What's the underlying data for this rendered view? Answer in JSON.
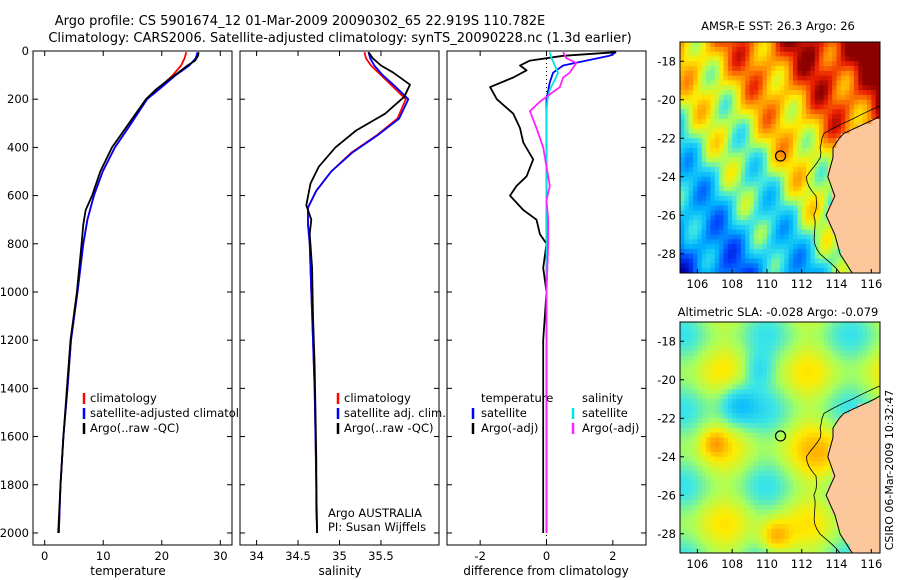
{
  "figure": {
    "title_line1": "Argo profile: CS 5901674_12 01-Mar-2009 20090302_65 22.919S 110.782E",
    "title_line2": "Climatology: CARS2006. Satellite-adjusted climatology: synTS_20090228.nc (1.3d earlier)",
    "side_label": "CSIRO 06-Mar-2009 10:32:47",
    "argo_note_line1": "Argo AUSTRALIA",
    "argo_note_line2": "PI: Susan Wijffels"
  },
  "colors": {
    "climatology": "#ff0000",
    "satellite": "#0000ff",
    "argo": "#000000",
    "salinity_satellite": "#00e5e5",
    "salinity_argo": "#ff22ff"
  },
  "chart_data": [
    {
      "type": "line",
      "xlabel": "temperature",
      "xlim": [
        -2,
        32
      ],
      "ylim": [
        0,
        2050
      ],
      "y_reversed": true,
      "xticks": [
        0,
        10,
        20,
        30
      ],
      "yticks": [
        0,
        200,
        400,
        600,
        800,
        1000,
        1200,
        1400,
        1600,
        1800,
        2000
      ],
      "legend": [
        "climatology",
        "satellite-adjusted climatolog",
        "Argo(..raw -QC)"
      ],
      "series": [
        {
          "name": "climatology",
          "color": "#ff0000",
          "points": [
            [
              24.2,
              5
            ],
            [
              23.9,
              30
            ],
            [
              23.3,
              60
            ],
            [
              21.9,
              100
            ],
            [
              19.7,
              150
            ],
            [
              17.4,
              200
            ],
            [
              14.8,
              300
            ],
            [
              12.0,
              400
            ],
            [
              9.9,
              500
            ],
            [
              8.4,
              600
            ],
            [
              7.3,
              700
            ],
            [
              6.6,
              800
            ],
            [
              5.6,
              1000
            ],
            [
              4.5,
              1200
            ],
            [
              3.9,
              1400
            ],
            [
              3.2,
              1600
            ],
            [
              2.7,
              1800
            ],
            [
              2.4,
              2000
            ]
          ]
        },
        {
          "name": "satellite-adjusted climatolog",
          "color": "#0000ff",
          "points": [
            [
              26.1,
              5
            ],
            [
              25.8,
              30
            ],
            [
              24.7,
              60
            ],
            [
              22.4,
              100
            ],
            [
              20.0,
              150
            ],
            [
              17.5,
              200
            ],
            [
              14.8,
              300
            ],
            [
              12.0,
              400
            ],
            [
              9.9,
              500
            ],
            [
              8.4,
              600
            ],
            [
              7.3,
              700
            ],
            [
              6.6,
              800
            ],
            [
              5.6,
              1000
            ],
            [
              4.5,
              1200
            ],
            [
              3.9,
              1400
            ],
            [
              3.2,
              1600
            ],
            [
              2.7,
              1800
            ],
            [
              2.4,
              2000
            ]
          ]
        },
        {
          "name": "Argo(..raw -QC)",
          "color": "#000000",
          "points": [
            [
              26.3,
              5
            ],
            [
              26.2,
              20
            ],
            [
              25.7,
              40
            ],
            [
              24.4,
              60
            ],
            [
              22.8,
              90
            ],
            [
              21.1,
              120
            ],
            [
              19.0,
              160
            ],
            [
              17.3,
              200
            ],
            [
              14.4,
              300
            ],
            [
              11.5,
              400
            ],
            [
              9.5,
              500
            ],
            [
              8.1,
              600
            ],
            [
              7.0,
              660
            ],
            [
              6.6,
              720
            ],
            [
              6.3,
              800
            ],
            [
              5.5,
              1000
            ],
            [
              4.4,
              1200
            ],
            [
              3.8,
              1400
            ],
            [
              3.2,
              1600
            ],
            [
              2.7,
              1800
            ],
            [
              2.3,
              2000
            ]
          ]
        }
      ]
    },
    {
      "type": "line",
      "xlabel": "salinity",
      "xlim": [
        33.8,
        36.2
      ],
      "ylim": [
        0,
        2050
      ],
      "y_reversed": true,
      "xticks": [
        34,
        34.5,
        35,
        35.5
      ],
      "legend": [
        "climatology",
        "satellite adj. clim.",
        "Argo(..raw -QC)"
      ],
      "series": [
        {
          "name": "climatology",
          "color": "#ff0000",
          "points": [
            [
              35.3,
              5
            ],
            [
              35.32,
              30
            ],
            [
              35.38,
              60
            ],
            [
              35.5,
              100
            ],
            [
              35.65,
              150
            ],
            [
              35.8,
              200
            ],
            [
              35.7,
              280
            ],
            [
              35.45,
              350
            ],
            [
              35.15,
              420
            ],
            [
              34.9,
              500
            ],
            [
              34.72,
              580
            ],
            [
              34.62,
              650
            ],
            [
              34.62,
              720
            ],
            [
              34.64,
              800
            ],
            [
              34.66,
              1000
            ],
            [
              34.68,
              1200
            ],
            [
              34.7,
              1400
            ],
            [
              34.71,
              1600
            ],
            [
              34.72,
              1800
            ],
            [
              34.73,
              2000
            ]
          ]
        },
        {
          "name": "satellite adj. clim.",
          "color": "#0000ff",
          "points": [
            [
              35.35,
              5
            ],
            [
              35.37,
              30
            ],
            [
              35.42,
              60
            ],
            [
              35.52,
              100
            ],
            [
              35.68,
              150
            ],
            [
              35.83,
              200
            ],
            [
              35.72,
              280
            ],
            [
              35.46,
              350
            ],
            [
              35.16,
              420
            ],
            [
              34.9,
              500
            ],
            [
              34.72,
              580
            ],
            [
              34.62,
              650
            ],
            [
              34.62,
              720
            ],
            [
              34.64,
              800
            ],
            [
              34.66,
              1000
            ],
            [
              34.68,
              1200
            ],
            [
              34.7,
              1400
            ],
            [
              34.71,
              1600
            ],
            [
              34.72,
              1800
            ],
            [
              34.73,
              2000
            ]
          ]
        },
        {
          "name": "Argo(..raw -QC)",
          "color": "#000000",
          "points": [
            [
              35.35,
              5
            ],
            [
              35.4,
              30
            ],
            [
              35.5,
              60
            ],
            [
              35.65,
              90
            ],
            [
              35.85,
              140
            ],
            [
              35.78,
              190
            ],
            [
              35.55,
              260
            ],
            [
              35.2,
              330
            ],
            [
              34.95,
              400
            ],
            [
              34.75,
              480
            ],
            [
              34.65,
              550
            ],
            [
              34.6,
              640
            ],
            [
              34.66,
              700
            ],
            [
              34.64,
              760
            ],
            [
              34.67,
              900
            ],
            [
              34.68,
              1100
            ],
            [
              34.7,
              1300
            ],
            [
              34.71,
              1500
            ],
            [
              34.72,
              1700
            ],
            [
              34.72,
              1900
            ],
            [
              34.73,
              2000
            ]
          ]
        }
      ]
    },
    {
      "type": "line",
      "xlabel": "difference from climatology",
      "xlim": [
        -3,
        3
      ],
      "ylim": [
        0,
        2050
      ],
      "y_reversed": true,
      "xticks": [
        -2,
        0,
        2
      ],
      "legend_groups": [
        {
          "title": "temperature",
          "items": [
            "satellite",
            "Argo(-adj)"
          ]
        },
        {
          "title": "salinity",
          "items": [
            "satellite",
            "Argo(-adj)"
          ]
        }
      ],
      "series": [
        {
          "name": "temperature satellite",
          "color": "#0000ff",
          "points": [
            [
              2.1,
              5
            ],
            [
              1.9,
              20
            ],
            [
              1.2,
              40
            ],
            [
              0.5,
              60
            ],
            [
              0.2,
              90
            ],
            [
              0.1,
              130
            ],
            [
              0,
              200
            ],
            [
              0,
              300
            ],
            [
              0,
              400
            ],
            [
              0,
              600
            ],
            [
              0,
              800
            ],
            [
              0,
              1000
            ],
            [
              0,
              1400
            ],
            [
              0,
              1800
            ],
            [
              0,
              2000
            ]
          ]
        },
        {
          "name": "temperature Argo(-adj)",
          "color": "#000000",
          "points": [
            [
              2.1,
              5
            ],
            [
              0.5,
              20
            ],
            [
              -0.5,
              40
            ],
            [
              -0.8,
              60
            ],
            [
              -0.6,
              80
            ],
            [
              -1.0,
              110
            ],
            [
              -1.7,
              150
            ],
            [
              -1.5,
              200
            ],
            [
              -1.0,
              260
            ],
            [
              -0.8,
              320
            ],
            [
              -0.7,
              380
            ],
            [
              -0.4,
              450
            ],
            [
              -0.6,
              520
            ],
            [
              -0.9,
              560
            ],
            [
              -1.1,
              600
            ],
            [
              -0.7,
              660
            ],
            [
              -0.3,
              700
            ],
            [
              -0.2,
              760
            ],
            [
              0,
              800
            ],
            [
              -0.1,
              900
            ],
            [
              0,
              1000
            ],
            [
              -0.1,
              1200
            ],
            [
              -0.1,
              1400
            ],
            [
              -0.1,
              1600
            ],
            [
              -0.1,
              1800
            ],
            [
              -0.1,
              2000
            ]
          ]
        },
        {
          "name": "salinity satellite",
          "color": "#00e5e5",
          "points": [
            [
              0.1,
              5
            ],
            [
              0.15,
              30
            ],
            [
              0.25,
              60
            ],
            [
              0.35,
              90
            ],
            [
              0.25,
              120
            ],
            [
              0.1,
              160
            ],
            [
              0.03,
              200
            ],
            [
              0,
              250
            ],
            [
              0,
              350
            ],
            [
              0,
              500
            ],
            [
              0,
              700
            ],
            [
              0,
              1000
            ],
            [
              0,
              1400
            ],
            [
              0,
              1800
            ],
            [
              0,
              2000
            ]
          ]
        },
        {
          "name": "salinity Argo(-adj)",
          "color": "#ff22ff",
          "points": [
            [
              0.5,
              5
            ],
            [
              0.6,
              30
            ],
            [
              0.9,
              50
            ],
            [
              0.8,
              70
            ],
            [
              0.7,
              90
            ],
            [
              0.5,
              110
            ],
            [
              0.4,
              150
            ],
            [
              0.1,
              180
            ],
            [
              -0.2,
              210
            ],
            [
              -0.5,
              250
            ],
            [
              -0.3,
              320
            ],
            [
              -0.1,
              400
            ],
            [
              0,
              480
            ],
            [
              0.1,
              560
            ],
            [
              0,
              620
            ],
            [
              0.05,
              700
            ],
            [
              0.05,
              800
            ],
            [
              0,
              1000
            ],
            [
              0,
              1400
            ],
            [
              0,
              1800
            ],
            [
              0,
              2000
            ]
          ]
        }
      ]
    },
    {
      "type": "heatmap",
      "title": "AMSR-E SST: 26.3  Argo: 26",
      "xlim": [
        105,
        116.5
      ],
      "ylim": [
        -29,
        -17
      ],
      "xticks": [
        106,
        108,
        110,
        112,
        114,
        116
      ],
      "yticks": [
        -18,
        -20,
        -22,
        -24,
        -26,
        -28
      ],
      "argo_location": [
        110.78,
        -22.92
      ]
    },
    {
      "type": "heatmap",
      "title": "Altimetric SLA: -0.028  Argo: -0.079",
      "xlim": [
        105,
        116.5
      ],
      "ylim": [
        -29,
        -17
      ],
      "xticks": [
        106,
        108,
        110,
        112,
        114,
        116
      ],
      "yticks": [
        -18,
        -20,
        -22,
        -24,
        -26,
        -28
      ],
      "argo_location": [
        110.78,
        -22.92
      ]
    }
  ]
}
